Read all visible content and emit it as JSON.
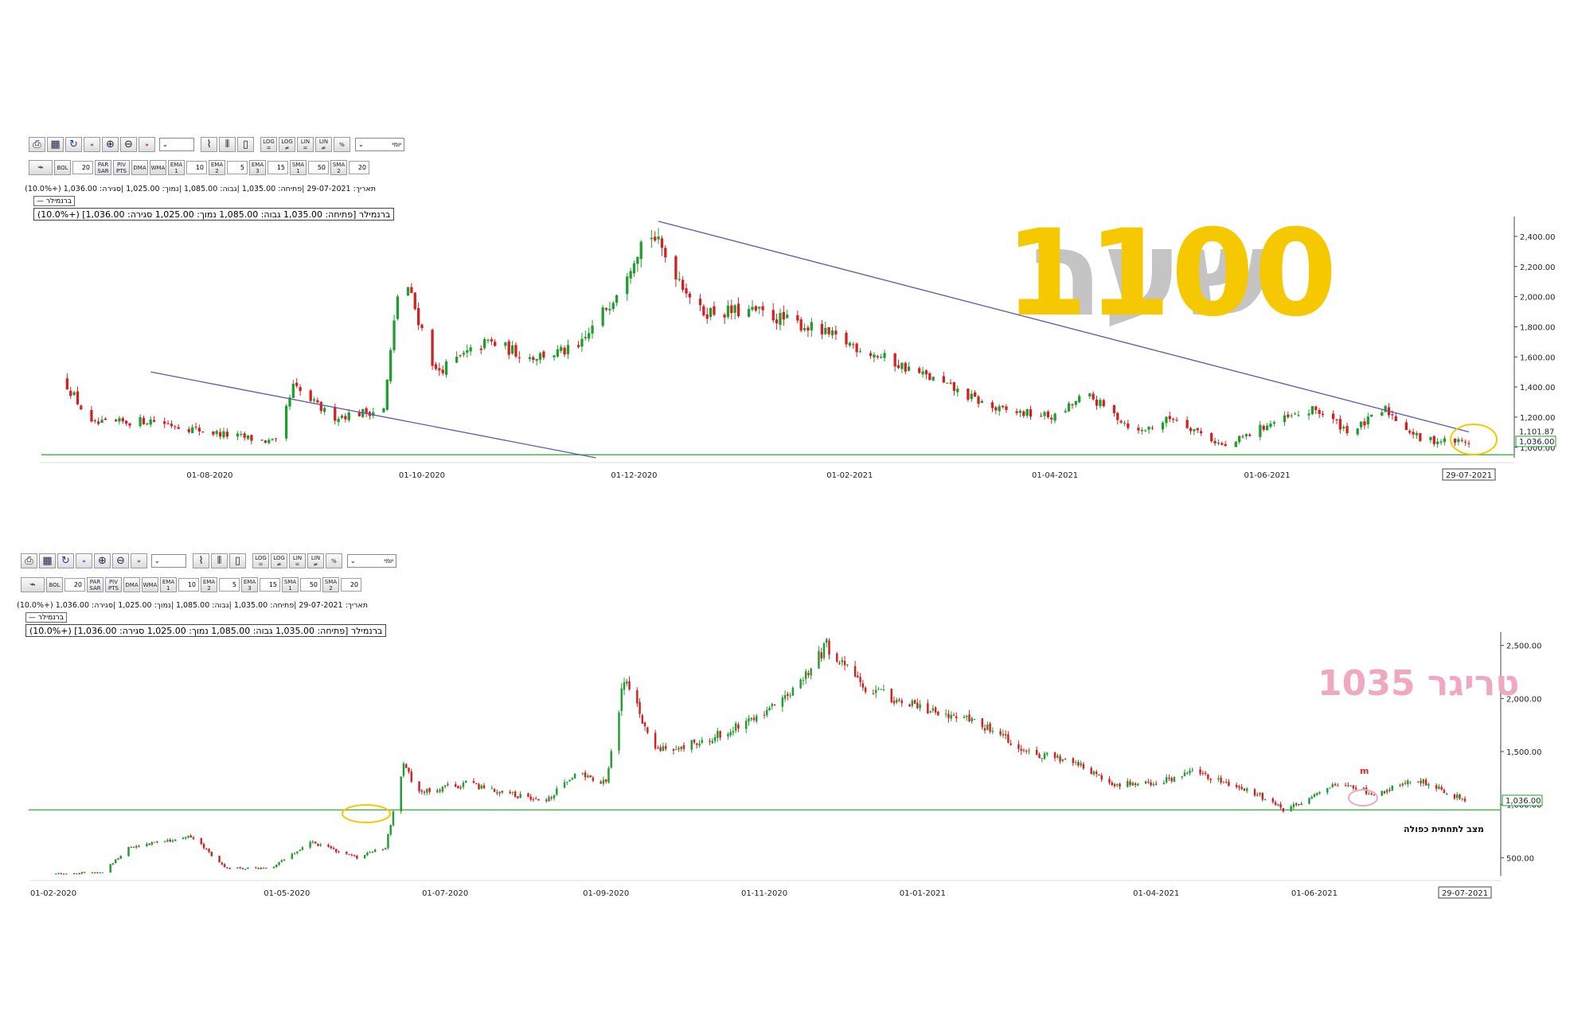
{
  "toolbar": {
    "period_select": "יומי",
    "buttons_row1": [
      "LOG\n=",
      "LOG\n≠",
      "LIN\n=",
      "LIN\n≠",
      "%"
    ],
    "buttons_row2": [
      "BOL",
      "PAR\nSAR",
      "PIV\nPTS",
      "DMA",
      "WMA",
      "EMA\n1",
      "EMA\n2",
      "EMA\n3",
      "SMA\n1",
      "SMA\n2"
    ],
    "inputs_row2": [
      "20",
      "10",
      "5",
      "15",
      "50",
      "20"
    ]
  },
  "info": {
    "line": "תאריך: 29-07-2021 |פתיחה: 1,035.00 |גבוה: 1,085.00 |נמוך: 1,025.00 |סגירה: 1,036.00 (+10.0%)",
    "legend": "ברנמילר",
    "status": "ברנמילר [פתיחה: 1,035.00  גבוה: 1,085.00  נמוך: 1,025.00  סגירה: 1,036.00]  (+10.0%)"
  },
  "annotations": {
    "top_big": "1100",
    "top_ghost": "שער",
    "bottom_trigger": "טריגר 1035",
    "bottom_pattern": "מצב לתחתית כפולה",
    "bottom_marker": "m"
  },
  "colors": {
    "up": "#1e9e2e",
    "down": "#d42020",
    "trend": "#5a5ab0",
    "support": "#5cb85c",
    "yellow": "#f5c800",
    "pink": "#f0a8c0"
  },
  "chart_data": [
    {
      "type": "candlestick",
      "title": "",
      "x_ticks": [
        "01-08-2020",
        "01-10-2020",
        "01-12-2020",
        "01-02-2021",
        "01-04-2021",
        "01-06-2021",
        "29-07-2021"
      ],
      "y_ticks": [
        "1,000.00",
        "1,200.00",
        "1,400.00",
        "1,600.00",
        "1,800.00",
        "2,000.00",
        "2,200.00",
        "2,400.00"
      ],
      "ylim": [
        930,
        2500
      ],
      "price_labels": [
        "1,101.87",
        "1,036.00"
      ],
      "path": [
        [
          "2020-06-20",
          1450
        ],
        [
          "2020-06-28",
          1150
        ],
        [
          "2020-07-15",
          1180
        ],
        [
          "2020-08-01",
          1100
        ],
        [
          "2020-08-20",
          1030
        ],
        [
          "2020-08-25",
          1400
        ],
        [
          "2020-09-05",
          1200
        ],
        [
          "2020-09-20",
          1250
        ],
        [
          "2020-09-25",
          2200
        ],
        [
          "2020-10-05",
          1500
        ],
        [
          "2020-10-20",
          1700
        ],
        [
          "2020-11-01",
          1600
        ],
        [
          "2020-11-15",
          1650
        ],
        [
          "2020-11-25",
          2000
        ],
        [
          "2020-12-05",
          2450
        ],
        [
          "2020-12-12",
          2200
        ],
        [
          "2020-12-20",
          1900
        ],
        [
          "2021-01-05",
          1900
        ],
        [
          "2021-01-20",
          1800
        ],
        [
          "2021-02-10",
          1600
        ],
        [
          "2021-02-25",
          1450
        ],
        [
          "2021-03-15",
          1250
        ],
        [
          "2021-04-01",
          1200
        ],
        [
          "2021-04-10",
          1350
        ],
        [
          "2021-04-25",
          1100
        ],
        [
          "2021-05-05",
          1200
        ],
        [
          "2021-05-20",
          1000
        ],
        [
          "2021-06-01",
          1150
        ],
        [
          "2021-06-15",
          1250
        ],
        [
          "2021-06-25",
          1100
        ],
        [
          "2021-07-05",
          1250
        ],
        [
          "2021-07-15",
          1050
        ],
        [
          "2021-07-29",
          1036
        ]
      ],
      "trendlines": [
        [
          [
            "2020-07-15",
            1500
          ],
          [
            "2020-11-20",
            930
          ]
        ],
        [
          [
            "2020-12-08",
            2500
          ],
          [
            "2021-07-29",
            1101.87
          ]
        ]
      ],
      "support": 950
    },
    {
      "type": "candlestick",
      "title": "",
      "x_ticks": [
        "01-02-2020",
        "01-05-2020",
        "01-07-2020",
        "01-09-2020",
        "01-11-2020",
        "01-01-2021",
        "01-04-2021",
        "01-06-2021",
        "29-07-2021"
      ],
      "y_ticks": [
        "500.00",
        "1,000.00",
        "1,500.00",
        "2,000.00",
        "2,500.00"
      ],
      "ylim": [
        330,
        2580
      ],
      "price_labels": [
        "1,036.00"
      ],
      "path": [
        [
          "2020-02-01",
          350
        ],
        [
          "2020-02-20",
          360
        ],
        [
          "2020-03-01",
          600
        ],
        [
          "2020-03-25",
          700
        ],
        [
          "2020-04-08",
          400
        ],
        [
          "2020-04-25",
          400
        ],
        [
          "2020-05-10",
          650
        ],
        [
          "2020-05-28",
          500
        ],
        [
          "2020-06-08",
          600
        ],
        [
          "2020-06-15",
          1400
        ],
        [
          "2020-06-20",
          1100
        ],
        [
          "2020-07-10",
          1200
        ],
        [
          "2020-07-25",
          1100
        ],
        [
          "2020-08-10",
          1050
        ],
        [
          "2020-08-20",
          1300
        ],
        [
          "2020-09-01",
          1200
        ],
        [
          "2020-09-08",
          2200
        ],
        [
          "2020-09-20",
          1500
        ],
        [
          "2020-10-10",
          1600
        ],
        [
          "2020-10-25",
          1800
        ],
        [
          "2020-11-10",
          2000
        ],
        [
          "2020-11-25",
          2500
        ],
        [
          "2020-12-10",
          2100
        ],
        [
          "2021-01-01",
          1900
        ],
        [
          "2021-01-20",
          1800
        ],
        [
          "2021-02-10",
          1500
        ],
        [
          "2021-03-01",
          1400
        ],
        [
          "2021-03-15",
          1200
        ],
        [
          "2021-04-01",
          1200
        ],
        [
          "2021-04-15",
          1300
        ],
        [
          "2021-05-10",
          1100
        ],
        [
          "2021-05-20",
          950
        ],
        [
          "2021-06-10",
          1200
        ],
        [
          "2021-06-25",
          1100
        ],
        [
          "2021-07-10",
          1250
        ],
        [
          "2021-07-29",
          1036
        ]
      ],
      "support": 950
    }
  ]
}
